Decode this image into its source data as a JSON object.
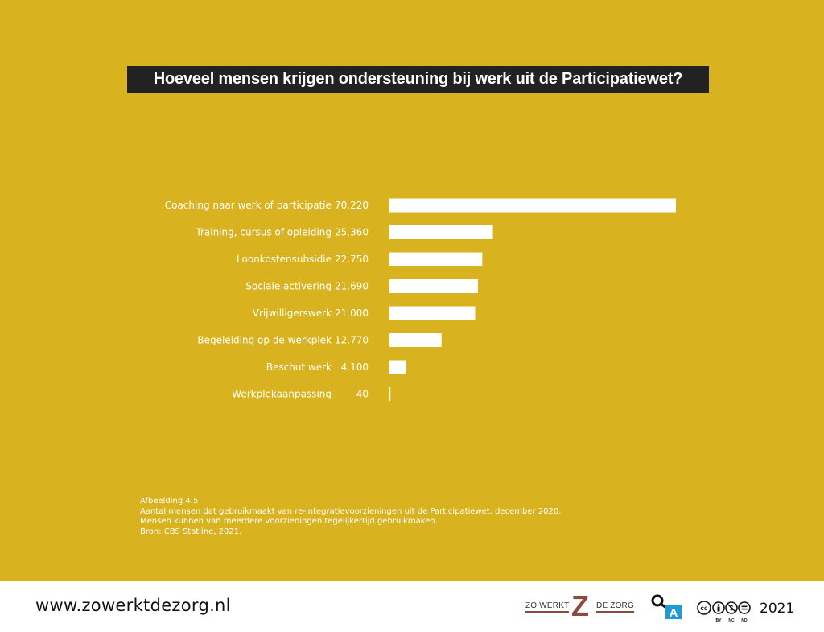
{
  "title": "Hoeveel mensen krijgen ondersteuning bij werk uit de Participatiewet?",
  "chart_data": {
    "type": "bar",
    "orientation": "horizontal",
    "categories": [
      "Coaching naar werk of participatie",
      "Training, cursus of opleiding",
      "Loonkostensubsidie",
      "Sociale activering",
      "Vrijwilligerswerk",
      "Begeleiding op de werkplek",
      "Beschut werk",
      "Werkplekaanpassing"
    ],
    "values": [
      70220,
      25360,
      22750,
      21690,
      21000,
      12770,
      4100,
      40
    ],
    "value_labels": [
      "70.220",
      "25.360",
      "22.750",
      "21.690",
      "21.000",
      "12.770",
      "4.100",
      "40"
    ],
    "xlim": [
      0,
      70220
    ],
    "grid": false,
    "bar_color": "#ffffff"
  },
  "caption": {
    "line1": "Afbeelding 4.5",
    "line2": "Aantal mensen dat gebruikmaakt van re-integratievoorzieningen uit de Participatiewet, december 2020.",
    "line3": "Mensen kunnen van meerdere voorzieningen tegelijkertijd gebruikmaken.",
    "line4": "Bron: CBS Statline, 2021."
  },
  "footer": {
    "url": "www.zowerktdezorg.nl",
    "logo_left": "ZO WERKT",
    "logo_mark": "Z",
    "logo_right": "DE ZORG",
    "oa_letter": "A",
    "cc_cc": "cc",
    "cc_by": "BY",
    "cc_nc": "NC",
    "cc_nd": "ND",
    "year": "2021"
  },
  "colors": {
    "background": "#D9B21F",
    "title_bar": "#222222",
    "text": "#ffffff",
    "logo_accent": "#8B4A3C",
    "oa_blue": "#1E9AD6"
  }
}
